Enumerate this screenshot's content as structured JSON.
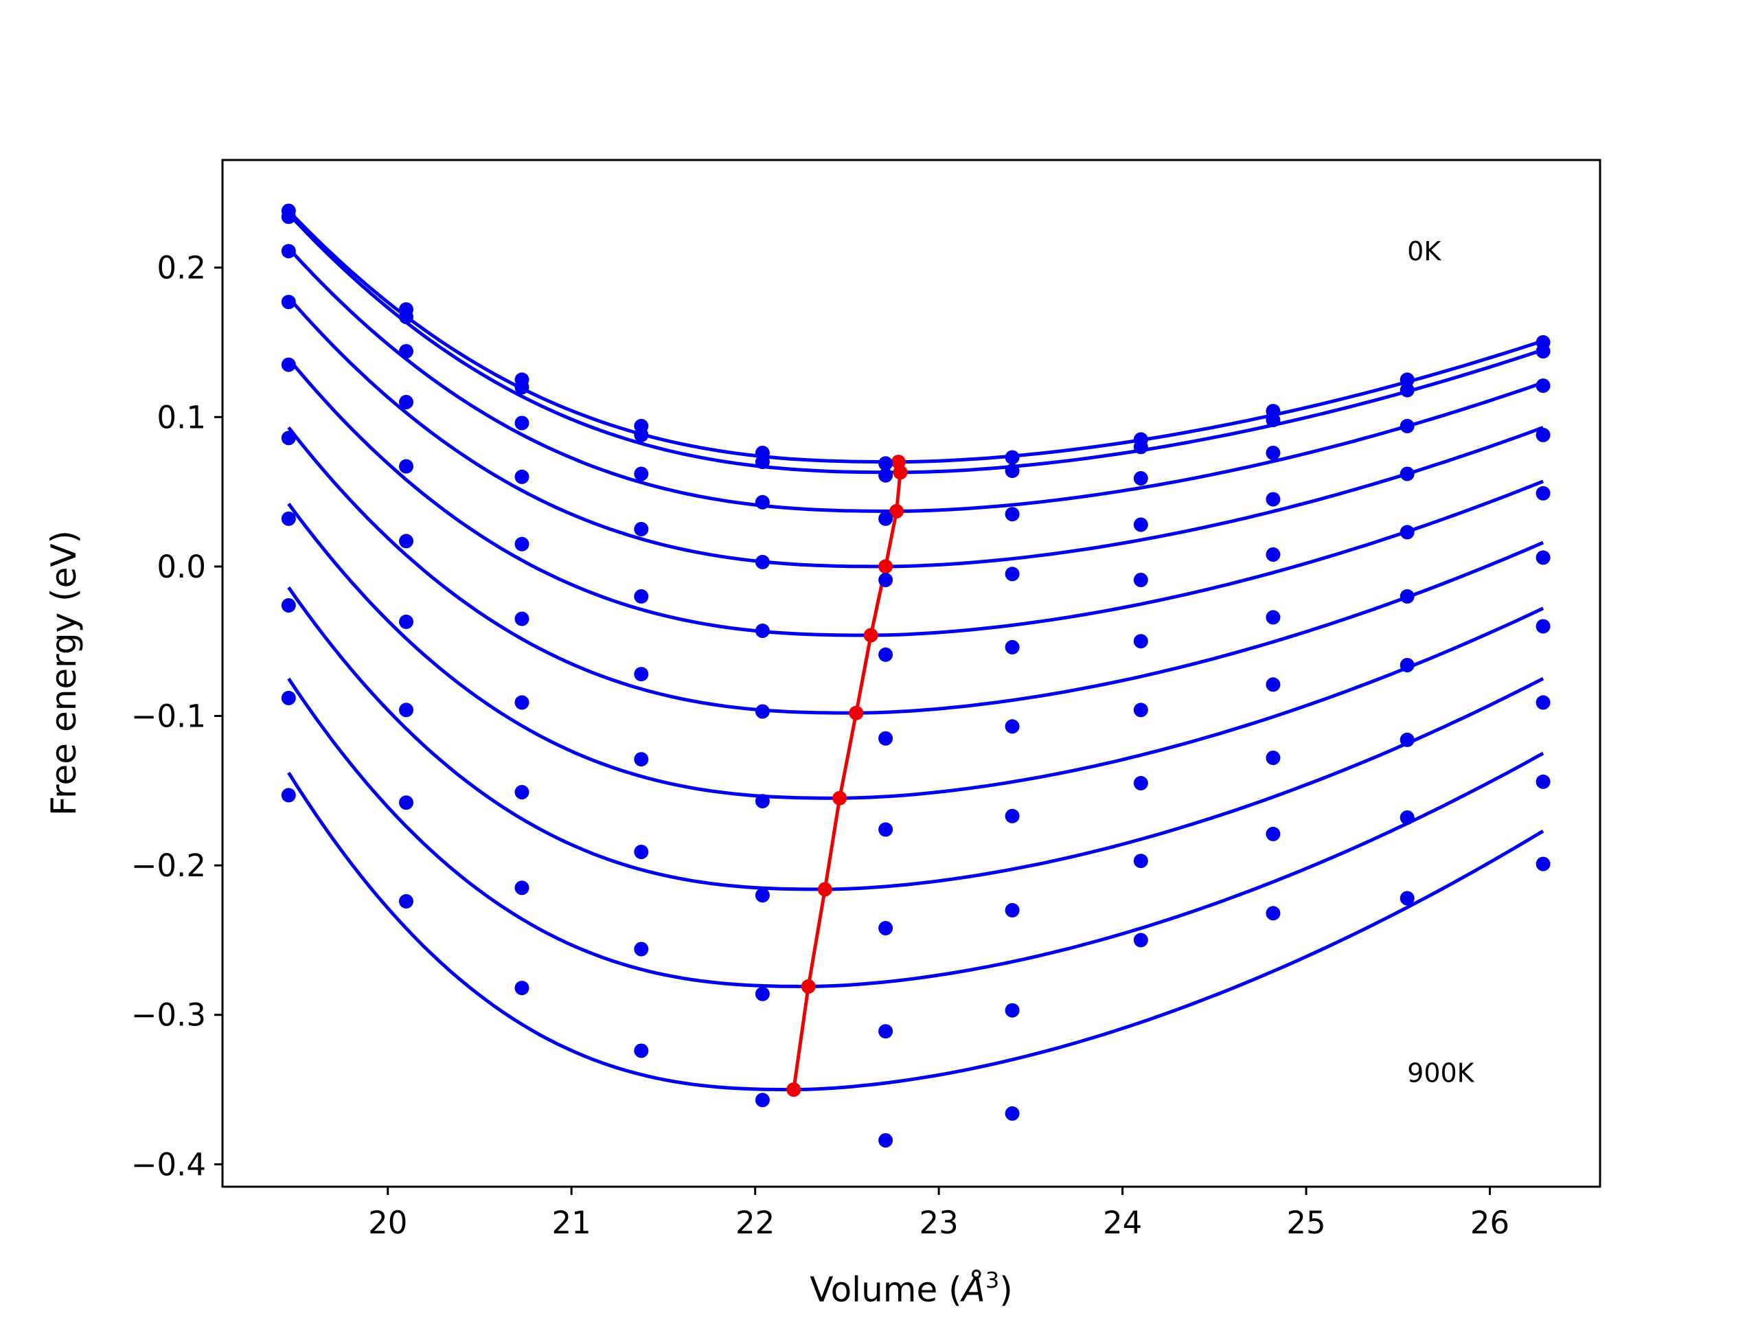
{
  "chart_data": {
    "type": "scatter",
    "xlabel": "Volume (",
    "xlabel_unit_base": "Å",
    "xlabel_unit_exp": "3",
    "xlabel_close": ")",
    "ylabel": "Free energy (eV)",
    "xlim": [
      19.1,
      26.6
    ],
    "ylim": [
      -0.415,
      0.272
    ],
    "grid": false,
    "legend": "none",
    "x_ticks": [
      20,
      21,
      22,
      23,
      24,
      25,
      26
    ],
    "x_tick_labels": [
      "20",
      "21",
      "22",
      "23",
      "24",
      "25",
      "26"
    ],
    "y_ticks": [
      0.2,
      0.1,
      0.0,
      -0.1,
      -0.2,
      -0.3,
      -0.4
    ],
    "y_tick_labels": [
      "0.2",
      "0.1",
      "0.0",
      "−0.1",
      "−0.2",
      "−0.3",
      "−0.4"
    ],
    "annotations": [
      {
        "text": "0K",
        "x": 25.55,
        "y": 0.205
      },
      {
        "text": "900K",
        "x": 25.55,
        "y": -0.345
      }
    ],
    "colors": {
      "points": "#0000ee",
      "fits": "#0000ee",
      "minimum_line": "#ee0000"
    },
    "volumes": [
      19.46,
      20.1,
      20.73,
      21.38,
      22.04,
      22.71,
      23.4,
      24.1,
      24.82,
      25.55,
      26.29
    ],
    "fit_x_range": [
      19.46,
      26.29
    ],
    "series": [
      {
        "values": [
          0.238,
          0.172,
          0.125,
          0.094,
          0.076,
          0.069,
          0.073,
          0.085,
          0.104,
          0.125,
          0.15
        ],
        "fit": {
          "minimum_x": 22.78,
          "minimum_y": 0.07,
          "left_y": 0.238,
          "right_y": 0.151
        }
      },
      {
        "values": [
          0.234,
          0.167,
          0.12,
          0.088,
          0.07,
          0.061,
          0.064,
          0.08,
          0.098,
          0.118,
          0.144
        ],
        "fit": {
          "minimum_x": 22.79,
          "minimum_y": 0.063,
          "left_y": 0.236,
          "right_y": 0.145
        }
      },
      {
        "values": [
          0.211,
          0.144,
          0.096,
          0.062,
          0.043,
          0.032,
          0.035,
          0.059,
          0.076,
          0.094,
          0.121
        ],
        "fit": {
          "minimum_x": 22.77,
          "minimum_y": 0.037,
          "left_y": 0.213,
          "right_y": 0.123
        }
      },
      {
        "values": [
          0.177,
          0.11,
          0.06,
          0.025,
          0.003,
          -0.009,
          -0.005,
          0.028,
          0.045,
          0.062,
          0.088
        ],
        "fit": {
          "minimum_x": 22.71,
          "minimum_y": 0.0,
          "left_y": 0.18,
          "right_y": 0.093
        }
      },
      {
        "values": [
          0.135,
          0.067,
          0.015,
          -0.02,
          -0.043,
          -0.059,
          -0.054,
          -0.009,
          0.008,
          0.023,
          0.049
        ],
        "fit": {
          "minimum_x": 22.63,
          "minimum_y": -0.046,
          "left_y": 0.139,
          "right_y": 0.057
        }
      },
      {
        "values": [
          0.086,
          0.017,
          -0.035,
          -0.072,
          -0.097,
          -0.115,
          -0.107,
          -0.05,
          -0.034,
          -0.02,
          0.006
        ],
        "fit": {
          "minimum_x": 22.55,
          "minimum_y": -0.098,
          "left_y": 0.093,
          "right_y": 0.016
        }
      },
      {
        "values": [
          0.032,
          -0.037,
          -0.091,
          -0.129,
          -0.157,
          -0.176,
          -0.167,
          -0.096,
          -0.079,
          -0.066,
          -0.04
        ],
        "fit": {
          "minimum_x": 22.46,
          "minimum_y": -0.155,
          "left_y": 0.042,
          "right_y": -0.028
        }
      },
      {
        "values": [
          -0.026,
          -0.096,
          -0.151,
          -0.191,
          -0.22,
          -0.242,
          -0.23,
          -0.145,
          -0.128,
          -0.116,
          -0.091
        ],
        "fit": {
          "minimum_x": 22.38,
          "minimum_y": -0.216,
          "left_y": -0.014,
          "right_y": -0.075
        }
      },
      {
        "values": [
          -0.088,
          -0.158,
          -0.215,
          -0.256,
          -0.286,
          -0.311,
          -0.297,
          -0.197,
          -0.179,
          -0.168,
          -0.144
        ],
        "fit": {
          "minimum_x": 22.29,
          "minimum_y": -0.281,
          "left_y": -0.075,
          "right_y": -0.125
        }
      },
      {
        "values": [
          -0.153,
          -0.224,
          -0.282,
          -0.324,
          -0.357,
          -0.384,
          -0.366,
          -0.25,
          -0.232,
          -0.222,
          -0.199
        ],
        "fit": {
          "minimum_x": 22.21,
          "minimum_y": -0.35,
          "left_y": -0.138,
          "right_y": -0.177
        }
      }
    ]
  }
}
